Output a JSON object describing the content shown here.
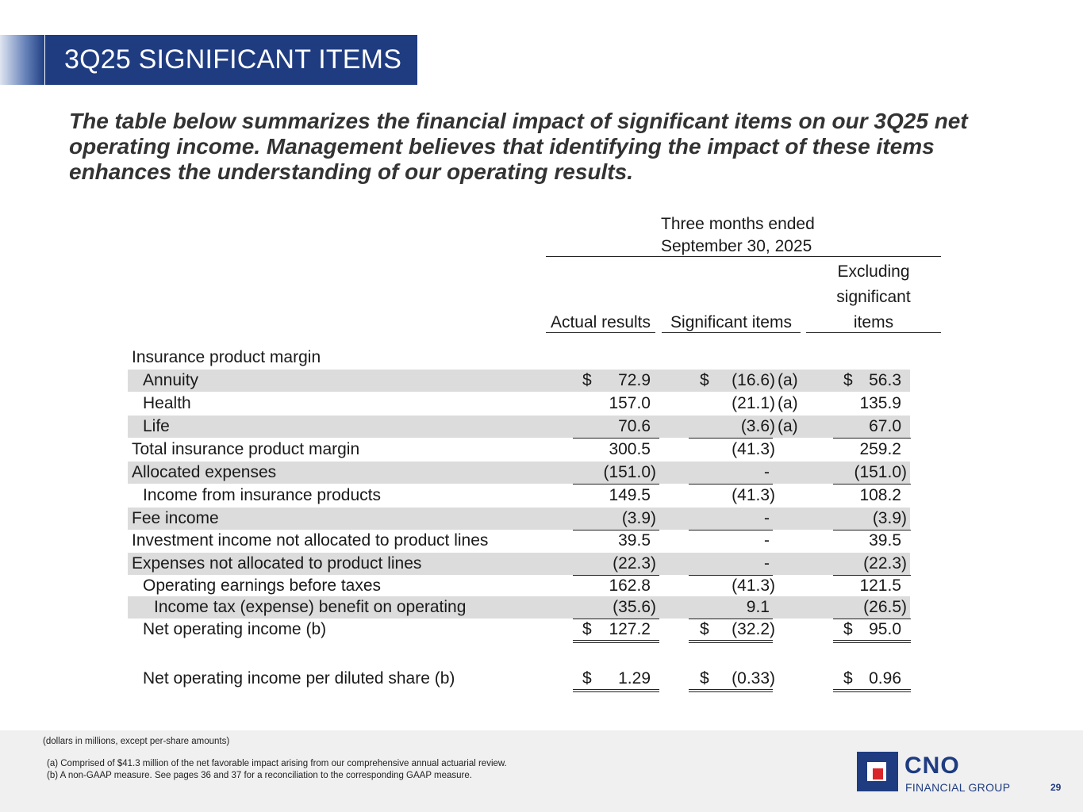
{
  "header": {
    "title": "3Q25 SIGNIFICANT ITEMS"
  },
  "intro": "The table below summarizes the financial impact of significant items on our 3Q25 net operating income. Management believes that identifying the impact of these items enhances the understanding of our operating results.",
  "table": {
    "period_line1": "Three months ended",
    "period_line2": "September 30, 2025",
    "columns": {
      "actual": "Actual results",
      "significant": "Significant items",
      "excluding_1": "Excluding",
      "excluding_2": "significant",
      "excluding_3": "items"
    },
    "rows": [
      {
        "label": "Insurance product margin",
        "actual": "",
        "sig": "",
        "note": "",
        "excl": ""
      },
      {
        "label": "Annuity",
        "actual": "72.9",
        "sig": "(16.6)",
        "note": "(a)",
        "excl": "56.3"
      },
      {
        "label": "Health",
        "actual": "157.0",
        "sig": "(21.1)",
        "note": "(a)",
        "excl": "135.9"
      },
      {
        "label": "Life",
        "actual": "70.6",
        "sig": "(3.6)",
        "note": "(a)",
        "excl": "67.0"
      },
      {
        "label": "Total insurance product margin",
        "actual": "300.5",
        "sig": "(41.3)",
        "note": "",
        "excl": "259.2"
      },
      {
        "label": "Allocated expenses",
        "actual": "(151.0)",
        "sig": "-",
        "note": "",
        "excl": "(151.0)"
      },
      {
        "label": "Income from insurance products",
        "actual": "149.5",
        "sig": "(41.3)",
        "note": "",
        "excl": "108.2"
      },
      {
        "label": "Fee income",
        "actual": "(3.9)",
        "sig": "-",
        "note": "",
        "excl": "(3.9)"
      },
      {
        "label": "Investment income not allocated to product lines",
        "actual": "39.5",
        "sig": "-",
        "note": "",
        "excl": "39.5"
      },
      {
        "label": "Expenses not allocated to product lines",
        "actual": "(22.3)",
        "sig": "-",
        "note": "",
        "excl": "(22.3)"
      },
      {
        "label": "Operating earnings before taxes",
        "actual": "162.8",
        "sig": "(41.3)",
        "note": "",
        "excl": "121.5"
      },
      {
        "label": "Income tax (expense) benefit on operating",
        "actual": "(35.6)",
        "sig": "9.1",
        "note": "",
        "excl": "(26.5)"
      },
      {
        "label": "Net operating income (b)",
        "actual": "127.2",
        "sig": "(32.2)",
        "note": "",
        "excl": "95.0"
      },
      {
        "label": "Net operating income per diluted share (b)",
        "actual": "1.29",
        "sig": "(0.33)",
        "note": "",
        "excl": "0.96"
      }
    ],
    "currency_symbol": "$"
  },
  "footer": {
    "units": "(dollars in millions, except per-share amounts)",
    "note_a": "(a) Comprised of $41.3 million of the net favorable impact arising from our comprehensive annual actuarial review.",
    "note_b": "(b) A non-GAAP measure. See pages 36 and 37 for a reconciliation to the corresponding GAAP measure.",
    "logo_name": "CNO",
    "logo_sub": "FINANCIAL GROUP",
    "page_number": "29"
  }
}
